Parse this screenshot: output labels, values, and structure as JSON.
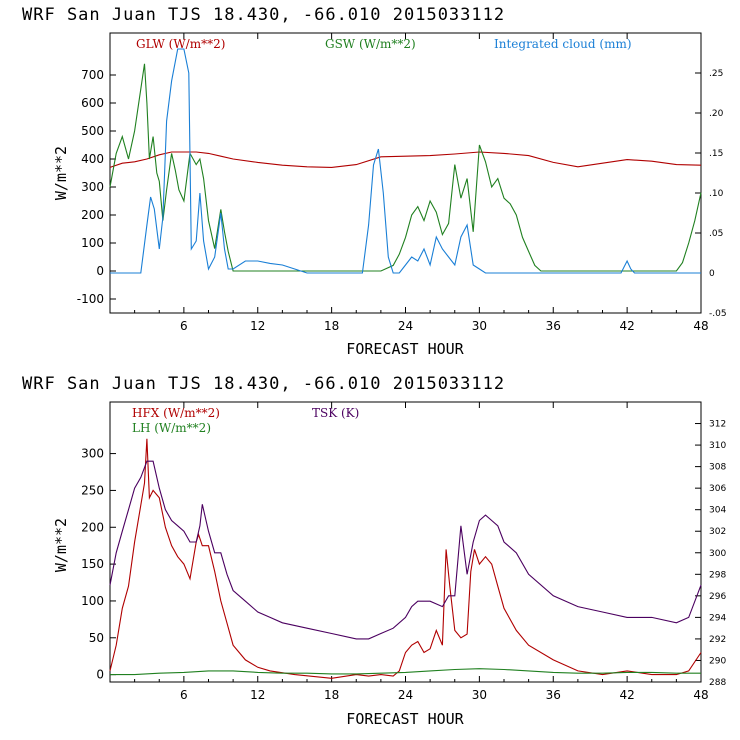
{
  "chart_data": [
    {
      "type": "line",
      "title": "WRF  San Juan TJS  18.430, -66.010  2015033112",
      "xlabel": "FORECAST HOUR",
      "ylabel": "W/m**2",
      "xlim": [
        0,
        48
      ],
      "ylim": [
        -150,
        850
      ],
      "y2lim": [
        -0.05,
        0.3
      ],
      "xticks": [
        "6",
        "12",
        "18",
        "24",
        "30",
        "36",
        "42",
        "48"
      ],
      "yticks": [
        "-100",
        "0",
        "100",
        "200",
        "300",
        "400",
        "500",
        "600",
        "700"
      ],
      "y2ticks": [
        "-.05",
        "0",
        ".05",
        ".10",
        ".15",
        ".20",
        ".25"
      ],
      "series": [
        {
          "name": "GLW (W/m**2)",
          "color": "#b00000",
          "axis": "left",
          "x": [
            0,
            1,
            2,
            3,
            4,
            5,
            6,
            7,
            8,
            9,
            10,
            12,
            14,
            16,
            18,
            20,
            22,
            24,
            26,
            28,
            30,
            32,
            34,
            36,
            38,
            40,
            42,
            44,
            46,
            48
          ],
          "y": [
            370,
            385,
            390,
            400,
            415,
            425,
            425,
            425,
            420,
            410,
            400,
            388,
            378,
            372,
            370,
            380,
            408,
            410,
            412,
            418,
            425,
            420,
            412,
            388,
            372,
            385,
            398,
            392,
            380,
            378
          ]
        },
        {
          "name": "GSW (W/m**2)",
          "color": "#208020",
          "axis": "left",
          "x": [
            0,
            0.5,
            1,
            1.5,
            2,
            2.5,
            2.8,
            3,
            3.2,
            3.5,
            3.8,
            4,
            4.3,
            4.6,
            5,
            5.3,
            5.6,
            6,
            6.5,
            7,
            7.3,
            7.6,
            8,
            8.5,
            9,
            9.3,
            9.6,
            10,
            11,
            12,
            18,
            20,
            21,
            22,
            23,
            23.5,
            24,
            24.5,
            25,
            25.5,
            26,
            26.5,
            27,
            27.5,
            28,
            28.5,
            29,
            29.5,
            30,
            30.5,
            31,
            31.5,
            32,
            32.5,
            33,
            33.5,
            34,
            34.5,
            35,
            36,
            44,
            46,
            46.5,
            47,
            47.5,
            48
          ],
          "y": [
            300,
            420,
            480,
            400,
            500,
            650,
            740,
            600,
            400,
            480,
            350,
            320,
            180,
            290,
            420,
            360,
            290,
            250,
            420,
            380,
            400,
            330,
            180,
            80,
            220,
            140,
            70,
            0,
            0,
            0,
            0,
            0,
            0,
            0,
            20,
            60,
            120,
            200,
            230,
            180,
            250,
            210,
            130,
            170,
            380,
            260,
            330,
            140,
            450,
            390,
            300,
            330,
            260,
            240,
            200,
            120,
            70,
            20,
            0,
            0,
            0,
            0,
            30,
            100,
            180,
            280
          ]
        },
        {
          "name": "Integrated cloud (mm)",
          "color": "#1a7fd6",
          "axis": "right",
          "x": [
            0,
            2.5,
            3,
            3.3,
            3.6,
            4,
            4.3,
            4.6,
            5,
            5.5,
            6,
            6.4,
            6.6,
            7,
            7.3,
            7.6,
            8,
            8.5,
            9,
            9.3,
            9.6,
            10,
            11,
            12,
            13,
            14,
            15,
            16,
            20,
            20.5,
            21,
            21.4,
            21.8,
            22.2,
            22.6,
            23,
            23.5,
            24,
            24.5,
            25,
            25.5,
            26,
            26.5,
            27,
            27.5,
            28,
            28.5,
            29,
            29.5,
            30,
            30.5,
            31,
            34,
            41.5,
            42,
            42.3,
            42.6,
            43,
            48
          ],
          "y": [
            0,
            0,
            0.06,
            0.095,
            0.08,
            0.03,
            0.07,
            0.19,
            0.24,
            0.28,
            0.28,
            0.25,
            0.03,
            0.04,
            0.1,
            0.04,
            0.005,
            0.02,
            0.075,
            0.03,
            0.005,
            0.005,
            0.015,
            0.015,
            0.012,
            0.01,
            0.005,
            0,
            0,
            0,
            0.06,
            0.135,
            0.155,
            0.1,
            0.02,
            0,
            0,
            0.01,
            0.02,
            0.015,
            0.03,
            0.01,
            0.045,
            0.03,
            0.02,
            0.01,
            0.045,
            0.06,
            0.01,
            0.005,
            0,
            0,
            0,
            0,
            0.015,
            0.005,
            0,
            0,
            0
          ]
        }
      ]
    },
    {
      "type": "line",
      "title": "WRF  San Juan TJS  18.430, -66.010  2015033112",
      "xlabel": "FORECAST HOUR",
      "ylabel": "W/m**2",
      "xlim": [
        0,
        48
      ],
      "ylim": [
        -10,
        370
      ],
      "y2lim": [
        288,
        314
      ],
      "xticks": [
        "6",
        "12",
        "18",
        "24",
        "30",
        "36",
        "42",
        "48"
      ],
      "yticks": [
        "0",
        "50",
        "100",
        "150",
        "200",
        "250",
        "300"
      ],
      "y2ticks": [
        "288",
        "290",
        "292",
        "294",
        "296",
        "298",
        "300",
        "302",
        "304",
        "306",
        "308",
        "310",
        "312"
      ],
      "series": [
        {
          "name": "HFX (W/m**2)",
          "color": "#b00000",
          "axis": "left",
          "x": [
            0,
            0.5,
            1,
            1.5,
            2,
            2.5,
            2.8,
            3,
            3.2,
            3.5,
            4,
            4.5,
            5,
            5.5,
            6,
            6.5,
            7,
            7.2,
            7.5,
            8,
            8.5,
            9,
            9.5,
            10,
            11,
            12,
            13,
            15,
            18,
            20,
            21,
            22,
            23,
            23.5,
            24,
            24.5,
            25,
            25.5,
            26,
            26.5,
            27,
            27.3,
            27.6,
            28,
            28.5,
            29,
            29.3,
            29.6,
            30,
            30.5,
            31,
            31.5,
            32,
            33,
            34,
            36,
            38,
            40,
            42,
            44,
            46,
            47,
            48
          ],
          "y": [
            5,
            40,
            90,
            120,
            180,
            230,
            260,
            320,
            240,
            250,
            240,
            200,
            175,
            160,
            150,
            130,
            180,
            190,
            175,
            175,
            140,
            100,
            70,
            40,
            20,
            10,
            5,
            0,
            -5,
            0,
            -2,
            0,
            -2,
            5,
            30,
            40,
            45,
            30,
            35,
            60,
            40,
            170,
            120,
            60,
            50,
            55,
            140,
            170,
            150,
            160,
            150,
            120,
            90,
            60,
            40,
            20,
            5,
            0,
            5,
            0,
            0,
            5,
            30
          ]
        },
        {
          "name": "LH  (W/m**2)",
          "color": "#208020",
          "axis": "left",
          "x": [
            0,
            2,
            4,
            6,
            8,
            10,
            12,
            14,
            16,
            18,
            20,
            22,
            24,
            26,
            28,
            30,
            32,
            34,
            36,
            38,
            40,
            42,
            44,
            46,
            48
          ],
          "y": [
            0,
            0,
            2,
            3,
            5,
            5,
            3,
            2,
            2,
            1,
            1,
            2,
            3,
            5,
            7,
            8,
            7,
            5,
            3,
            2,
            2,
            3,
            3,
            2,
            2
          ]
        },
        {
          "name": "TSK (K)",
          "color": "#4b0060",
          "axis": "right",
          "x": [
            0,
            0.5,
            1,
            1.5,
            2,
            2.5,
            3,
            3.5,
            4,
            4.5,
            5,
            5.5,
            6,
            6.5,
            7,
            7.3,
            7.5,
            8,
            8.5,
            9,
            9.5,
            10,
            11,
            12,
            13,
            14,
            16,
            18,
            20,
            21,
            22,
            23,
            24,
            24.5,
            25,
            26,
            27,
            27.5,
            28,
            28.5,
            29,
            29.5,
            30,
            30.5,
            31,
            31.5,
            32,
            33,
            34,
            36,
            38,
            40,
            42,
            44,
            46,
            47,
            48
          ],
          "y": [
            297,
            300,
            302,
            304,
            306,
            307,
            308.5,
            308.5,
            306,
            304,
            303,
            302.5,
            302,
            301,
            301,
            302.5,
            304.5,
            302,
            300,
            300,
            298,
            296.5,
            295.5,
            294.5,
            294,
            293.5,
            293,
            292.5,
            292,
            292,
            292.5,
            293,
            294,
            295,
            295.5,
            295.5,
            295,
            296,
            296,
            302.5,
            298,
            301,
            303,
            303.5,
            303,
            302.5,
            301,
            300,
            298,
            296,
            295,
            294.5,
            294,
            294,
            293.5,
            294,
            297
          ]
        }
      ]
    }
  ]
}
